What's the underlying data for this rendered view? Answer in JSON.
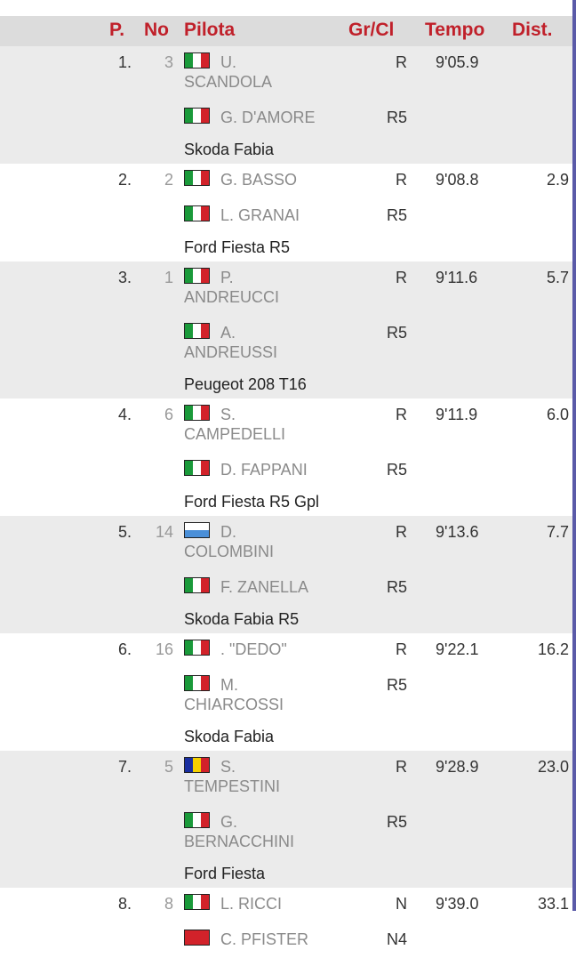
{
  "header": {
    "pos": "P.",
    "no": "No",
    "pilot": "Pilota",
    "grcl": "Gr/Cl",
    "tempo": "Tempo",
    "dist": "Dist."
  },
  "colors": {
    "header_text": "#c0202a",
    "header_bg": "#dcdcdc",
    "alt_row": "#ebebeb"
  },
  "rows": [
    {
      "pos": "1.",
      "no": "3",
      "driver": "U. SCANDOLA",
      "driver_flag": "italy",
      "gr": "R",
      "codriver": "G. D'AMORE",
      "codriver_flag": "italy",
      "cl": "R5",
      "car": "Skoda Fabia",
      "tempo": "9'05.9",
      "dist": ""
    },
    {
      "pos": "2.",
      "no": "2",
      "driver": "G. BASSO",
      "driver_flag": "italy",
      "gr": "R",
      "codriver": "L. GRANAI",
      "codriver_flag": "italy",
      "cl": "R5",
      "car": "Ford Fiesta R5",
      "tempo": "9'08.8",
      "dist": "2.9"
    },
    {
      "pos": "3.",
      "no": "1",
      "driver": "P. ANDREUCCI",
      "driver_flag": "italy",
      "gr": "R",
      "codriver": "A. ANDREUSSI",
      "codriver_flag": "italy",
      "cl": "R5",
      "car": "Peugeot 208 T16",
      "tempo": "9'11.6",
      "dist": "5.7"
    },
    {
      "pos": "4.",
      "no": "6",
      "driver": "S. CAMPEDELLI",
      "driver_flag": "italy",
      "gr": "R",
      "codriver": "D. FAPPANI",
      "codriver_flag": "italy",
      "cl": "R5",
      "car": "Ford Fiesta R5 Gpl",
      "tempo": "9'11.9",
      "dist": "6.0"
    },
    {
      "pos": "5.",
      "no": "14",
      "driver": "D. COLOMBINI",
      "driver_flag": "san-marino",
      "gr": "R",
      "codriver": "F. ZANELLA",
      "codriver_flag": "italy",
      "cl": "R5",
      "car": "Skoda Fabia R5",
      "tempo": "9'13.6",
      "dist": "7.7"
    },
    {
      "pos": "6.",
      "no": "16",
      "driver": ". \"DEDO\"",
      "driver_flag": "italy",
      "gr": "R",
      "codriver": "M. CHIARCOSSI",
      "codriver_flag": "italy",
      "cl": "R5",
      "car": "Skoda Fabia",
      "tempo": "9'22.1",
      "dist": "16.2"
    },
    {
      "pos": "7.",
      "no": "5",
      "driver": "S. TEMPESTINI",
      "driver_flag": "romania",
      "gr": "R",
      "codriver": "G. BERNACCHINI",
      "codriver_flag": "italy",
      "cl": "R5",
      "car": "Ford Fiesta",
      "tempo": "9'28.9",
      "dist": "23.0"
    },
    {
      "pos": "8.",
      "no": "8",
      "driver": "L. RICCI",
      "driver_flag": "italy",
      "gr": "N",
      "codriver": "C. PFISTER",
      "codriver_flag": "switzerland",
      "cl": "N4",
      "car": "",
      "tempo": "9'39.0",
      "dist": "33.1"
    }
  ]
}
